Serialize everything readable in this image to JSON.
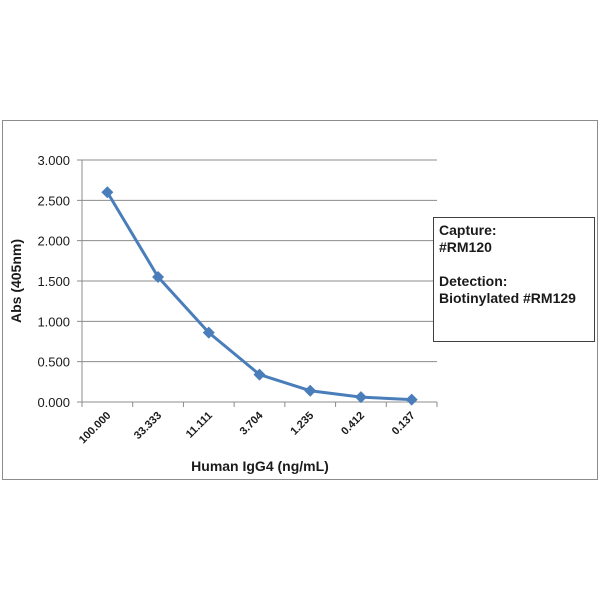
{
  "chart_data": {
    "type": "line",
    "title": "",
    "xlabel": "Human IgG4 (ng/mL)",
    "ylabel": "Abs (405nm)",
    "categories": [
      "100.000",
      "33.333",
      "11.111",
      "3.704",
      "1.235",
      "0.412",
      "0.137"
    ],
    "series": [
      {
        "name": "Human IgG4",
        "values": [
          2.6,
          1.55,
          0.86,
          0.34,
          0.14,
          0.06,
          0.03
        ],
        "color": "#4a7ebb",
        "marker": "diamond"
      }
    ],
    "yticks": [
      "0.000",
      "0.500",
      "1.000",
      "1.500",
      "2.000",
      "2.500",
      "3.000"
    ],
    "ylim": [
      0,
      3
    ],
    "grid": true,
    "legend_position": "right",
    "annotation": {
      "capture_label": "Capture:",
      "capture_value": "#RM120",
      "detection_label": "Detection:",
      "detection_value": "Biotinylated #RM129"
    }
  }
}
